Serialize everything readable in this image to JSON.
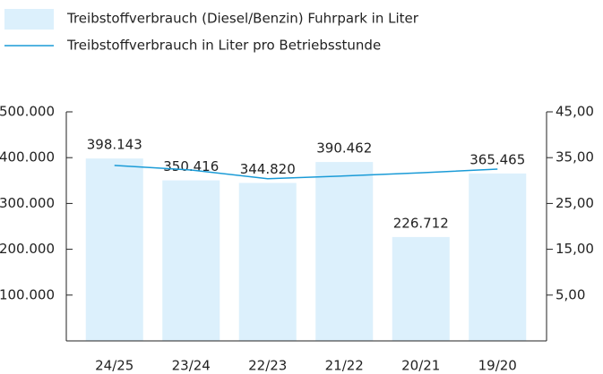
{
  "chart_data": {
    "type": "bar_line",
    "categories": [
      "24/25",
      "23/24",
      "22/23",
      "21/22",
      "20/21",
      "19/20"
    ],
    "series": [
      {
        "name": "Treibstoffverbrauch (Diesel/Benzin) Fuhrpark in Liter",
        "type": "bar",
        "color": "#dcf0fc",
        "values": [
          398143,
          350416,
          344820,
          390462,
          226712,
          365465
        ],
        "value_labels": [
          "398.143",
          "350.416",
          "344.820",
          "390.462",
          "226.712",
          "365.465"
        ]
      },
      {
        "name": "Treibstoffverbrauch in Liter pro Betriebsstunde",
        "type": "line",
        "color": "#1a9bd7",
        "axis": "y2",
        "values": [
          33.3,
          32.3,
          30.4,
          31.0,
          31.7,
          32.5
        ]
      }
    ],
    "ylim": [
      0,
      500000
    ],
    "yticks": [
      {
        "value": 100000,
        "label": "100.000"
      },
      {
        "value": 200000,
        "label": "200.000"
      },
      {
        "value": 300000,
        "label": "300.000"
      },
      {
        "value": 400000,
        "label": "400.000"
      },
      {
        "value": 500000,
        "label": "500.000"
      }
    ],
    "y2lim": [
      -5,
      45
    ],
    "y2ticks": [
      {
        "value": 5,
        "label": "5,00"
      },
      {
        "value": 15,
        "label": "15,00"
      },
      {
        "value": 25,
        "label": "25,00"
      },
      {
        "value": 35,
        "label": "35,00"
      },
      {
        "value": 45,
        "label": "45,00"
      }
    ],
    "y2color": "#1a9bd7"
  }
}
